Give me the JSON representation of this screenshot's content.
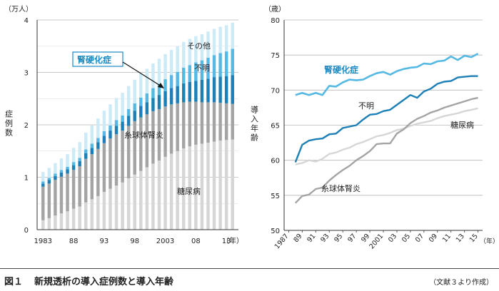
{
  "caption": {
    "label": "図１",
    "text": "新規透析の導入症例数と導入年齢",
    "source": "（文献３より作成）"
  },
  "colors": {
    "diabetes": "#d6d6d6",
    "glomerulo": "#a4a4a4",
    "unknown": "#1c7fb6",
    "sclerosis": "#55b9e3",
    "other": "#cdeaf7",
    "accent_label": "#1a8ac4"
  },
  "chart_data": [
    {
      "type": "bar",
      "stacked": true,
      "y_unit": "（万人）",
      "ylabel": "症例数",
      "ylim": [
        0,
        4
      ],
      "yticks": [
        "0",
        "1",
        "2",
        "3",
        "4"
      ],
      "grid": true,
      "years": [
        1983,
        1984,
        1985,
        1986,
        1987,
        1988,
        1989,
        1990,
        1991,
        1992,
        1993,
        1994,
        1995,
        1996,
        1997,
        1998,
        1999,
        2000,
        2001,
        2002,
        2003,
        2004,
        2005,
        2006,
        2007,
        2008,
        2009,
        2010,
        2011,
        2012,
        2013,
        2014
      ],
      "xticks": [
        {
          "year": 1983,
          "label": "1983"
        },
        {
          "year": 1988,
          "label": "88"
        },
        {
          "year": 1993,
          "label": "93"
        },
        {
          "year": 1998,
          "label": "98"
        },
        {
          "year": 2003,
          "label": "2003"
        },
        {
          "year": 2008,
          "label": "08"
        },
        {
          "year": 2013,
          "label": "13"
        }
      ],
      "x_unit": "（年）",
      "series": [
        {
          "key": "diabetes",
          "name": "糖尿病",
          "values": [
            0.18,
            0.22,
            0.27,
            0.31,
            0.35,
            0.4,
            0.44,
            0.52,
            0.58,
            0.64,
            0.72,
            0.78,
            0.84,
            0.9,
            0.98,
            1.05,
            1.12,
            1.19,
            1.26,
            1.32,
            1.39,
            1.45,
            1.5,
            1.55,
            1.59,
            1.62,
            1.64,
            1.66,
            1.68,
            1.7,
            1.71,
            1.72
          ]
        },
        {
          "key": "glomerulo",
          "name": "糸球体腎炎",
          "values": [
            0.64,
            0.66,
            0.68,
            0.7,
            0.72,
            0.74,
            0.77,
            0.83,
            0.86,
            0.9,
            0.93,
            0.96,
            0.98,
            0.99,
            1.0,
            1.02,
            1.02,
            1.01,
            1.0,
            0.98,
            0.96,
            0.94,
            0.91,
            0.88,
            0.85,
            0.82,
            0.79,
            0.77,
            0.75,
            0.72,
            0.7,
            0.68
          ]
        },
        {
          "key": "unknown",
          "name": "不明",
          "values": [
            0.06,
            0.07,
            0.07,
            0.08,
            0.08,
            0.09,
            0.1,
            0.11,
            0.12,
            0.13,
            0.14,
            0.15,
            0.16,
            0.17,
            0.19,
            0.2,
            0.22,
            0.23,
            0.25,
            0.27,
            0.29,
            0.31,
            0.33,
            0.36,
            0.38,
            0.4,
            0.43,
            0.45,
            0.48,
            0.5,
            0.52,
            0.55
          ]
        },
        {
          "key": "sclerosis",
          "name": "腎硬化症",
          "values": [
            0.04,
            0.04,
            0.05,
            0.05,
            0.05,
            0.06,
            0.06,
            0.07,
            0.08,
            0.08,
            0.09,
            0.1,
            0.11,
            0.12,
            0.13,
            0.14,
            0.16,
            0.17,
            0.19,
            0.21,
            0.23,
            0.25,
            0.27,
            0.3,
            0.32,
            0.35,
            0.37,
            0.4,
            0.42,
            0.45,
            0.47,
            0.5
          ]
        },
        {
          "key": "other",
          "name": "その他",
          "values": [
            0.18,
            0.19,
            0.2,
            0.22,
            0.24,
            0.27,
            0.3,
            0.32,
            0.35,
            0.37,
            0.39,
            0.4,
            0.42,
            0.43,
            0.44,
            0.45,
            0.46,
            0.47,
            0.47,
            0.48,
            0.48,
            0.48,
            0.49,
            0.49,
            0.5,
            0.5,
            0.5,
            0.5,
            0.5,
            0.5,
            0.5,
            0.5
          ]
        }
      ]
    },
    {
      "type": "line",
      "y_unit": "（歳）",
      "ylabel": "導入年齢",
      "ylim": [
        50,
        80
      ],
      "yticks": [
        "50",
        "55",
        "60",
        "65",
        "70",
        "75",
        "80"
      ],
      "grid": true,
      "years": [
        1988,
        1989,
        1990,
        1991,
        1992,
        1993,
        1994,
        1995,
        1996,
        1997,
        1998,
        1999,
        2000,
        2001,
        2002,
        2003,
        2004,
        2005,
        2006,
        2007,
        2008,
        2009,
        2010,
        2011,
        2012,
        2013,
        2014,
        2015
      ],
      "xticks": [
        {
          "year": 1987,
          "label": "1987"
        },
        {
          "year": 1989,
          "label": "89"
        },
        {
          "year": 1991,
          "label": "91"
        },
        {
          "year": 1993,
          "label": "93"
        },
        {
          "year": 1995,
          "label": "95"
        },
        {
          "year": 1997,
          "label": "97"
        },
        {
          "year": 1999,
          "label": "99"
        },
        {
          "year": 2001,
          "label": "2001"
        },
        {
          "year": 2003,
          "label": "03"
        },
        {
          "year": 2005,
          "label": "05"
        },
        {
          "year": 2007,
          "label": "07"
        },
        {
          "year": 2009,
          "label": "09"
        },
        {
          "year": 2011,
          "label": "11"
        },
        {
          "year": 2013,
          "label": "13"
        },
        {
          "year": 2015,
          "label": "15"
        }
      ],
      "x_unit": "（年）",
      "series": [
        {
          "key": "sclerosis",
          "name": "腎硬化症",
          "values": [
            69.3,
            69.6,
            69.3,
            69.6,
            69.3,
            70.6,
            70.5,
            71.1,
            71.5,
            71.4,
            71.5,
            72.0,
            72.4,
            72.6,
            72.2,
            72.7,
            73.0,
            73.2,
            73.3,
            73.8,
            73.7,
            74.1,
            74.2,
            74.8,
            74.3,
            74.9,
            74.7,
            75.2
          ]
        },
        {
          "key": "unknown",
          "name": "不明",
          "values": [
            59.7,
            62.2,
            62.8,
            63.0,
            63.1,
            63.7,
            63.8,
            64.6,
            64.8,
            65.0,
            65.8,
            66.5,
            66.6,
            67.0,
            67.2,
            67.9,
            68.6,
            69.3,
            68.9,
            69.8,
            70.2,
            70.9,
            71.2,
            71.3,
            71.8,
            71.9,
            72.0,
            72.0
          ]
        },
        {
          "key": "diabetes",
          "name": "糖尿病",
          "values": [
            59.4,
            59.6,
            60.0,
            59.8,
            60.2,
            60.9,
            61.1,
            61.5,
            61.8,
            62.3,
            62.6,
            63.0,
            63.4,
            63.6,
            63.9,
            64.3,
            64.5,
            64.9,
            65.2,
            65.4,
            65.6,
            66.0,
            66.3,
            66.5,
            66.7,
            67.0,
            67.2,
            67.4
          ]
        },
        {
          "key": "glomerulo",
          "name": "糸球体腎炎",
          "values": [
            53.9,
            54.9,
            55.1,
            55.9,
            56.1,
            57.1,
            57.9,
            58.6,
            59.2,
            60.0,
            60.6,
            61.3,
            62.3,
            62.4,
            62.4,
            63.8,
            64.4,
            65.3,
            65.9,
            66.3,
            66.8,
            67.1,
            67.5,
            67.8,
            68.1,
            68.4,
            68.7,
            68.9
          ]
        }
      ]
    }
  ]
}
